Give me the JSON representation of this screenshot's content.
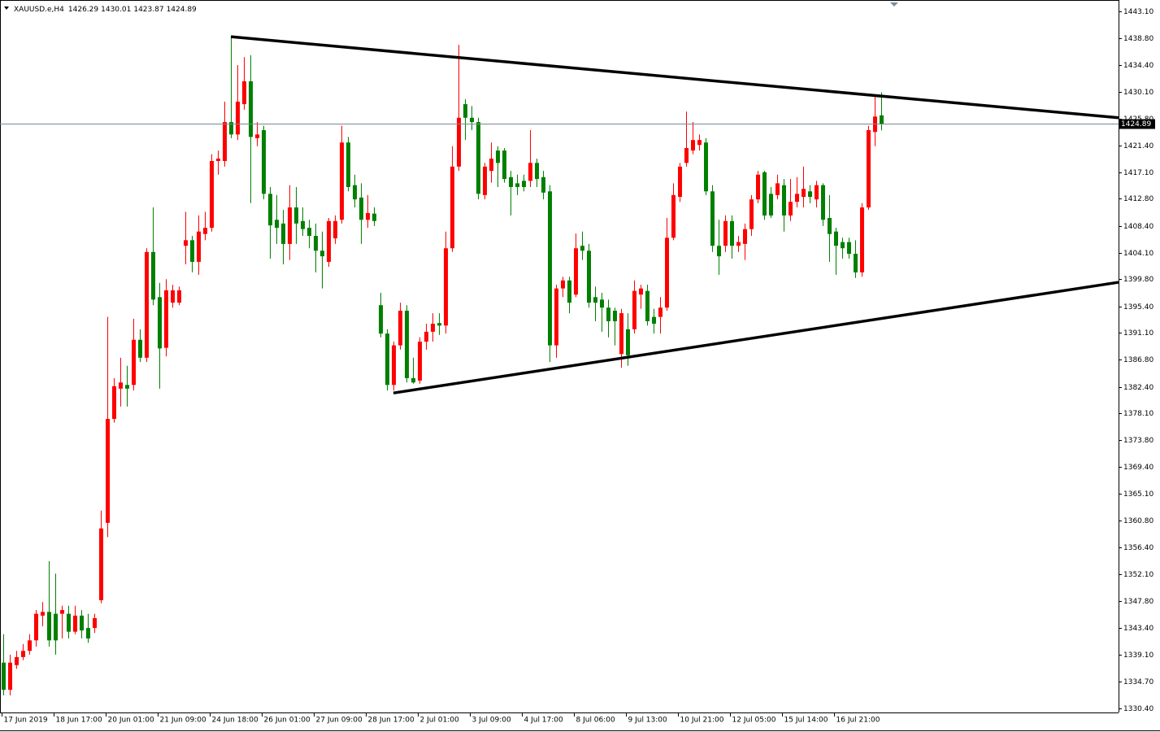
{
  "chart_data": {
    "type": "candlestick",
    "symbol": "XAUUSD.e,H4",
    "bull_color": "#ff0000",
    "bear_color": "#008000",
    "bid_line_color": "#778899",
    "trendline_color": "#000000",
    "ylim": [
      1329.74,
      1444.94
    ],
    "yticks": [
      {
        "value": 1443.1,
        "label": "1443.10"
      },
      {
        "value": 1438.8,
        "label": "1438.80"
      },
      {
        "value": 1434.4,
        "label": "1434.40"
      },
      {
        "value": 1430.1,
        "label": "1430.10"
      },
      {
        "value": 1425.8,
        "label": "1425.80"
      },
      {
        "value": 1421.4,
        "label": "1421.40"
      },
      {
        "value": 1417.1,
        "label": "1417.10"
      },
      {
        "value": 1412.8,
        "label": "1412.80"
      },
      {
        "value": 1408.4,
        "label": "1408.40"
      },
      {
        "value": 1404.1,
        "label": "1404.10"
      },
      {
        "value": 1399.8,
        "label": "1399.80"
      },
      {
        "value": 1395.4,
        "label": "1395.40"
      },
      {
        "value": 1391.1,
        "label": "1391.10"
      },
      {
        "value": 1386.8,
        "label": "1386.80"
      },
      {
        "value": 1382.4,
        "label": "1382.40"
      },
      {
        "value": 1378.1,
        "label": "1378.10"
      },
      {
        "value": 1373.8,
        "label": "1373.80"
      },
      {
        "value": 1369.4,
        "label": "1369.40"
      },
      {
        "value": 1365.1,
        "label": "1365.10"
      },
      {
        "value": 1360.8,
        "label": "1360.80"
      },
      {
        "value": 1356.4,
        "label": "1356.40"
      },
      {
        "value": 1352.1,
        "label": "1352.10"
      },
      {
        "value": 1347.8,
        "label": "1347.80"
      },
      {
        "value": 1343.4,
        "label": "1343.40"
      },
      {
        "value": 1339.1,
        "label": "1339.10"
      },
      {
        "value": 1334.7,
        "label": "1334.70"
      },
      {
        "value": 1330.4,
        "label": "1330.40"
      }
    ],
    "categories": [
      "17 Jun 2019",
      null,
      null,
      null,
      null,
      null,
      null,
      null,
      "18 Jun 17:00",
      null,
      null,
      null,
      null,
      null,
      null,
      null,
      "20 Jun 01:00",
      null,
      null,
      null,
      null,
      null,
      null,
      null,
      "21 Jun 09:00",
      null,
      null,
      null,
      null,
      null,
      null,
      null,
      "24 Jun 18:00",
      null,
      null,
      null,
      null,
      null,
      null,
      null,
      "26 Jun 01:00",
      null,
      null,
      null,
      null,
      null,
      null,
      null,
      "27 Jun 09:00",
      null,
      null,
      null,
      null,
      null,
      null,
      null,
      "28 Jun 17:00",
      null,
      null,
      null,
      null,
      null,
      null,
      null,
      "2 Jul 01:00",
      null,
      null,
      null,
      null,
      null,
      null,
      null,
      "3 Jul 09:00",
      null,
      null,
      null,
      null,
      null,
      null,
      null,
      "4 Jul 17:00",
      null,
      null,
      null,
      null,
      null,
      null,
      null,
      "8 Jul 06:00",
      null,
      null,
      null,
      null,
      null,
      null,
      null,
      "9 Jul 13:00",
      null,
      null,
      null,
      null,
      null,
      null,
      null,
      "10 Jul 21:00",
      null,
      null,
      null,
      null,
      null,
      null,
      null,
      "12 Jul 05:00",
      null,
      null,
      null,
      null,
      null,
      null,
      null,
      "15 Jul 14:00",
      null,
      null,
      null,
      null,
      null,
      null,
      null,
      "16 Jul 21:00",
      null,
      null,
      null,
      null,
      null,
      null,
      null
    ],
    "open": [
      1337.8,
      1333.4,
      1337.4,
      1338.7,
      1339.7,
      1341.4,
      1345.4,
      1346.0,
      1345.7,
      1345.7,
      1345.7,
      1342.8,
      1345.4,
      1343.4,
      1343.4,
      1347.9,
      1360.4,
      1377.2,
      1382.1,
      1382.7,
      1382.7,
      1390.0,
      1387.1,
      1404.2,
      1396.9,
      1388.7,
      1396.0,
      1396.0,
      1405.2,
      1406.1,
      1402.6,
      1407.1,
      1408.1,
      1418.9,
      1418.9,
      1425.2,
      1423.2,
      1428.1,
      1431.8,
      1422.6,
      1423.9,
      1413.6,
      1409.4,
      1408.8,
      1405.5,
      1411.4,
      1409.2,
      1408.1,
      1406.8,
      1404.4,
      1402.6,
      1406.4,
      1409.4,
      1421.9,
      1415.0,
      1413.0,
      1409.4,
      1410.4,
      1395.6,
      1391.0,
      1382.7,
      1389.1,
      1394.7,
      1383.8,
      1383.4,
      1389.7,
      1391.3,
      1392.7,
      1392.3,
      1404.8,
      1418.0,
      1428.1,
      1425.9,
      1425.2,
      1413.4,
      1417.3,
      1420.6,
      1420.6,
      1416.3,
      1415.3,
      1415.7,
      1415.7,
      1418.6,
      1416.3,
      1414.0,
      1389.1,
      1398.3,
      1399.6,
      1397.3,
      1405.2,
      1404.4,
      1396.9,
      1396.5,
      1395.2,
      1394.7,
      1387.7,
      1391.7,
      1391.7,
      1397.3,
      1397.9,
      1393.7,
      1393.7,
      1395.2,
      1406.5,
      1413.1,
      1418.6,
      1420.6,
      1421.5,
      1421.9,
      1414.0,
      1405.2,
      1405.2,
      1409.2,
      1405.2,
      1405.5,
      1407.9,
      1412.7,
      1417.1,
      1413.6,
      1413.4,
      1415.0,
      1410.1,
      1412.3,
      1413.1,
      1414.0,
      1412.7,
      1415.0,
      1409.7,
      1407.5,
      1405.8,
      1405.8,
      1403.9,
      1400.9,
      1411.4,
      1423.6,
      1426.29
    ],
    "high": [
      1342.4,
      1339.1,
      1339.7,
      1340.8,
      1342.4,
      1346.3,
      1347.6,
      1354.2,
      1352.2,
      1347.0,
      1347.0,
      1347.0,
      1346.3,
      1345.7,
      1345.7,
      1362.4,
      1393.7,
      1383.8,
      1387.1,
      1385.8,
      1393.4,
      1391.7,
      1404.8,
      1411.4,
      1399.2,
      1399.8,
      1398.9,
      1398.6,
      1410.7,
      1406.8,
      1410.1,
      1410.7,
      1420.0,
      1420.6,
      1428.5,
      1439.0,
      1434.4,
      1435.7,
      1436.0,
      1425.2,
      1424.6,
      1414.7,
      1413.4,
      1411.0,
      1415.0,
      1414.7,
      1411.4,
      1409.4,
      1408.8,
      1407.5,
      1409.7,
      1410.1,
      1424.6,
      1422.8,
      1416.7,
      1415.3,
      1413.4,
      1411.4,
      1397.6,
      1391.7,
      1389.7,
      1396.0,
      1395.6,
      1387.1,
      1390.4,
      1392.6,
      1394.3,
      1394.3,
      1407.5,
      1421.3,
      1437.7,
      1428.9,
      1427.8,
      1425.9,
      1418.6,
      1421.9,
      1421.3,
      1421.0,
      1417.3,
      1416.7,
      1416.7,
      1423.9,
      1419.3,
      1417.3,
      1415.0,
      1398.9,
      1400.2,
      1400.2,
      1407.2,
      1407.5,
      1405.5,
      1398.6,
      1397.6,
      1396.5,
      1395.2,
      1395.0,
      1394.3,
      1399.6,
      1398.9,
      1398.9,
      1395.0,
      1396.9,
      1409.7,
      1415.3,
      1418.6,
      1426.9,
      1425.2,
      1423.2,
      1422.6,
      1415.0,
      1409.4,
      1410.1,
      1410.1,
      1406.8,
      1408.8,
      1413.4,
      1417.3,
      1417.3,
      1414.7,
      1416.7,
      1416.0,
      1416.0,
      1416.3,
      1418.0,
      1415.0,
      1415.7,
      1415.3,
      1413.4,
      1408.1,
      1406.5,
      1406.5,
      1406.1,
      1412.1,
      1424.6,
      1429.4,
      1430.01
    ],
    "low": [
      1332.5,
      1332.5,
      1336.8,
      1338.2,
      1339.1,
      1340.4,
      1343.7,
      1340.4,
      1339.1,
      1341.7,
      1341.7,
      1342.4,
      1341.7,
      1341.0,
      1342.6,
      1347.4,
      1358.1,
      1376.6,
      1379.2,
      1379.2,
      1381.8,
      1386.4,
      1386.4,
      1395.6,
      1382.1,
      1387.3,
      1395.2,
      1395.6,
      1402.2,
      1400.9,
      1400.5,
      1406.1,
      1407.5,
      1416.7,
      1418.0,
      1422.6,
      1422.3,
      1427.2,
      1412.1,
      1421.3,
      1412.7,
      1403.1,
      1405.5,
      1402.2,
      1402.9,
      1405.5,
      1406.8,
      1404.8,
      1400.9,
      1398.3,
      1401.8,
      1405.5,
      1408.8,
      1414.0,
      1411.4,
      1405.5,
      1408.1,
      1408.4,
      1390.4,
      1381.8,
      1381.8,
      1388.4,
      1383.1,
      1382.9,
      1382.9,
      1388.4,
      1389.7,
      1390.8,
      1391.0,
      1404.2,
      1417.3,
      1422.3,
      1423.9,
      1412.7,
      1412.7,
      1415.4,
      1414.7,
      1415.4,
      1410.1,
      1413.4,
      1414.0,
      1414.7,
      1414.7,
      1412.7,
      1386.4,
      1387.1,
      1396.9,
      1394.3,
      1396.9,
      1402.9,
      1395.2,
      1393.0,
      1391.3,
      1390.4,
      1389.1,
      1385.5,
      1385.8,
      1391.0,
      1395.0,
      1392.3,
      1391.0,
      1391.0,
      1394.7,
      1406.1,
      1412.3,
      1418.0,
      1420.0,
      1420.6,
      1413.4,
      1404.2,
      1400.5,
      1404.2,
      1403.1,
      1404.2,
      1402.9,
      1406.8,
      1412.1,
      1409.4,
      1409.7,
      1412.7,
      1407.5,
      1409.2,
      1411.4,
      1411.4,
      1412.1,
      1411.4,
      1408.4,
      1402.6,
      1400.5,
      1403.1,
      1403.1,
      1400.0,
      1400.2,
      1411.0,
      1421.3,
      1423.87
    ],
    "close": [
      1333.4,
      1337.8,
      1338.7,
      1339.7,
      1341.4,
      1345.7,
      1346.0,
      1341.4,
      1341.4,
      1346.3,
      1342.8,
      1345.4,
      1343.0,
      1341.7,
      1345.0,
      1359.5,
      1377.2,
      1382.5,
      1383.1,
      1382.1,
      1390.0,
      1387.1,
      1404.2,
      1396.5,
      1388.6,
      1398.0,
      1398.0,
      1398.0,
      1406.1,
      1402.6,
      1407.5,
      1408.1,
      1418.9,
      1419.3,
      1425.2,
      1423.2,
      1428.5,
      1431.8,
      1422.8,
      1423.2,
      1413.6,
      1408.5,
      1408.1,
      1405.5,
      1411.4,
      1408.8,
      1407.9,
      1406.8,
      1404.4,
      1403.5,
      1409.2,
      1409.2,
      1421.9,
      1414.7,
      1412.7,
      1409.4,
      1410.5,
      1409.2,
      1391.0,
      1382.7,
      1389.1,
      1394.7,
      1383.8,
      1383.1,
      1389.7,
      1391.3,
      1392.6,
      1392.3,
      1404.8,
      1418.0,
      1425.9,
      1425.9,
      1425.2,
      1413.6,
      1418.0,
      1419.3,
      1418.6,
      1416.0,
      1414.7,
      1414.7,
      1414.7,
      1418.6,
      1416.0,
      1413.8,
      1389.1,
      1398.3,
      1399.6,
      1396.0,
      1404.8,
      1404.4,
      1396.0,
      1396.0,
      1395.2,
      1393.0,
      1393.0,
      1394.3,
      1387.5,
      1397.9,
      1398.3,
      1393.0,
      1392.6,
      1395.2,
      1406.5,
      1413.4,
      1418.0,
      1421.0,
      1422.3,
      1422.3,
      1414.0,
      1405.2,
      1403.5,
      1409.2,
      1405.2,
      1405.8,
      1407.9,
      1412.7,
      1416.7,
      1410.1,
      1410.1,
      1415.3,
      1410.1,
      1412.3,
      1413.6,
      1414.4,
      1413.1,
      1415.0,
      1409.4,
      1407.1,
      1405.2,
      1404.8,
      1403.9,
      1400.9,
      1411.4,
      1423.9,
      1426.1,
      1424.89
    ],
    "trendlines": [
      {
        "points": [
          [
            35,
            1439.0
          ],
          [
            171.5,
            1425.9
          ]
        ]
      },
      {
        "points": [
          [
            60,
            1381.4
          ],
          [
            171.5,
            1399.3
          ]
        ]
      }
    ]
  }
}
